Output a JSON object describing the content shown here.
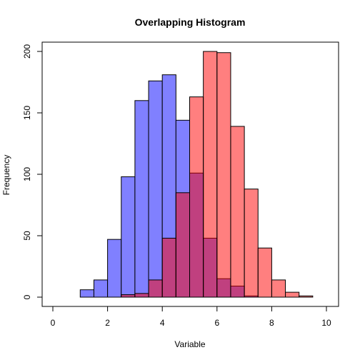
{
  "chart_data": {
    "type": "bar",
    "title": "Overlapping Histogram",
    "xlabel": "Variable",
    "ylabel": "Frequency",
    "xlim": [
      0,
      10
    ],
    "ylim": [
      0,
      200
    ],
    "xticks": [
      0,
      2,
      4,
      6,
      8,
      10
    ],
    "yticks": [
      0,
      50,
      100,
      150,
      200
    ],
    "bin_width": 0.5,
    "grid": false,
    "series": [
      {
        "color": "#8080ff",
        "fill_opacity": 1,
        "bins": [
          {
            "x0": 1.0,
            "value": 6
          },
          {
            "x0": 1.5,
            "value": 14
          },
          {
            "x0": 2.0,
            "value": 47
          },
          {
            "x0": 2.5,
            "value": 98
          },
          {
            "x0": 3.0,
            "value": 160
          },
          {
            "x0": 3.5,
            "value": 176
          },
          {
            "x0": 4.0,
            "value": 181
          },
          {
            "x0": 4.5,
            "value": 144
          },
          {
            "x0": 5.0,
            "value": 101
          },
          {
            "x0": 5.5,
            "value": 48
          },
          {
            "x0": 6.0,
            "value": 15
          },
          {
            "x0": 6.5,
            "value": 9
          },
          {
            "x0": 7.0,
            "value": 1
          }
        ]
      },
      {
        "color": "#ff0000",
        "fill_opacity": 0.5,
        "bins": [
          {
            "x0": 2.5,
            "value": 2
          },
          {
            "x0": 3.0,
            "value": 3
          },
          {
            "x0": 3.5,
            "value": 14
          },
          {
            "x0": 4.0,
            "value": 48
          },
          {
            "x0": 4.5,
            "value": 85
          },
          {
            "x0": 5.0,
            "value": 163
          },
          {
            "x0": 5.5,
            "value": 200
          },
          {
            "x0": 6.0,
            "value": 199
          },
          {
            "x0": 6.5,
            "value": 139
          },
          {
            "x0": 7.0,
            "value": 88
          },
          {
            "x0": 7.5,
            "value": 40
          },
          {
            "x0": 8.0,
            "value": 14
          },
          {
            "x0": 8.5,
            "value": 4
          },
          {
            "x0": 9.0,
            "value": 1
          }
        ]
      }
    ]
  }
}
